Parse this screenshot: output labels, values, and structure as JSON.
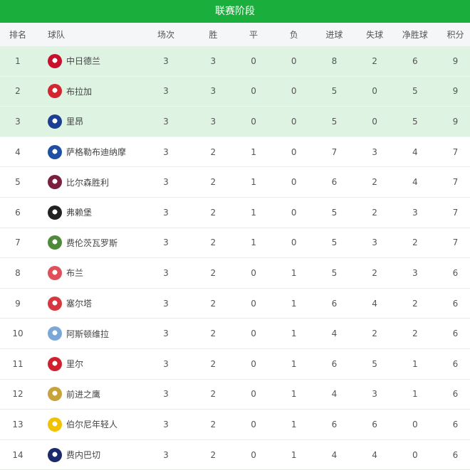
{
  "title": "联赛阶段",
  "columns": [
    "排名",
    "球队",
    "场次",
    "胜",
    "平",
    "负",
    "进球",
    "失球",
    "净胜球",
    "积分"
  ],
  "highlight_color": "#dff3e3",
  "accent": "#1aaf3c",
  "rows": [
    {
      "rank": "1",
      "team": "中日德兰",
      "logo": "midtjylland-crest",
      "color": "#c8102e",
      "played": "3",
      "w": "3",
      "d": "0",
      "l": "0",
      "gf": "8",
      "ga": "2",
      "gd": "6",
      "pts": "9",
      "highlight": true
    },
    {
      "rank": "2",
      "team": "布拉加",
      "logo": "braga-crest",
      "color": "#d22630",
      "played": "3",
      "w": "3",
      "d": "0",
      "l": "0",
      "gf": "5",
      "ga": "0",
      "gd": "5",
      "pts": "9",
      "highlight": true
    },
    {
      "rank": "3",
      "team": "里昂",
      "logo": "lyon-crest",
      "color": "#1c3f94",
      "played": "3",
      "w": "3",
      "d": "0",
      "l": "0",
      "gf": "5",
      "ga": "0",
      "gd": "5",
      "pts": "9",
      "highlight": true
    },
    {
      "rank": "4",
      "team": "萨格勒布迪纳摩",
      "logo": "dinamo-zagreb-crest",
      "color": "#1e4fa3",
      "played": "3",
      "w": "2",
      "d": "1",
      "l": "0",
      "gf": "7",
      "ga": "3",
      "gd": "4",
      "pts": "7"
    },
    {
      "rank": "5",
      "team": "比尔森胜利",
      "logo": "viktoria-plzen-crest",
      "color": "#7a1f3d",
      "played": "3",
      "w": "2",
      "d": "1",
      "l": "0",
      "gf": "6",
      "ga": "2",
      "gd": "4",
      "pts": "7"
    },
    {
      "rank": "6",
      "team": "弗赖堡",
      "logo": "freiburg-crest",
      "color": "#222222",
      "played": "3",
      "w": "2",
      "d": "1",
      "l": "0",
      "gf": "5",
      "ga": "2",
      "gd": "3",
      "pts": "7"
    },
    {
      "rank": "7",
      "team": "费伦茨瓦罗斯",
      "logo": "ferencvaros-crest",
      "color": "#4e8a3a",
      "played": "3",
      "w": "2",
      "d": "1",
      "l": "0",
      "gf": "5",
      "ga": "3",
      "gd": "2",
      "pts": "7"
    },
    {
      "rank": "8",
      "team": "布兰",
      "logo": "brann-crest",
      "color": "#e0505a",
      "played": "3",
      "w": "2",
      "d": "0",
      "l": "1",
      "gf": "5",
      "ga": "2",
      "gd": "3",
      "pts": "6"
    },
    {
      "rank": "9",
      "team": "塞尔塔",
      "logo": "celta-crest",
      "color": "#d6383f",
      "played": "3",
      "w": "2",
      "d": "0",
      "l": "1",
      "gf": "6",
      "ga": "4",
      "gd": "2",
      "pts": "6"
    },
    {
      "rank": "10",
      "team": "阿斯顿维拉",
      "logo": "aston-villa-crest",
      "color": "#7aa7d6",
      "played": "3",
      "w": "2",
      "d": "0",
      "l": "1",
      "gf": "4",
      "ga": "2",
      "gd": "2",
      "pts": "6"
    },
    {
      "rank": "11",
      "team": "里尔",
      "logo": "lille-crest",
      "color": "#d0202f",
      "played": "3",
      "w": "2",
      "d": "0",
      "l": "1",
      "gf": "6",
      "ga": "5",
      "gd": "1",
      "pts": "6"
    },
    {
      "rank": "12",
      "team": "前进之鹰",
      "logo": "go-ahead-eagles-crest",
      "color": "#c8a23a",
      "played": "3",
      "w": "2",
      "d": "0",
      "l": "1",
      "gf": "4",
      "ga": "3",
      "gd": "1",
      "pts": "6"
    },
    {
      "rank": "13",
      "team": "伯尔尼年轻人",
      "logo": "young-boys-crest",
      "color": "#f2c200",
      "played": "3",
      "w": "2",
      "d": "0",
      "l": "1",
      "gf": "6",
      "ga": "6",
      "gd": "0",
      "pts": "6"
    },
    {
      "rank": "14",
      "team": "费内巴切",
      "logo": "fenerbahce-crest",
      "color": "#1b2a6b",
      "played": "3",
      "w": "2",
      "d": "0",
      "l": "1",
      "gf": "4",
      "ga": "4",
      "gd": "0",
      "pts": "6"
    }
  ]
}
